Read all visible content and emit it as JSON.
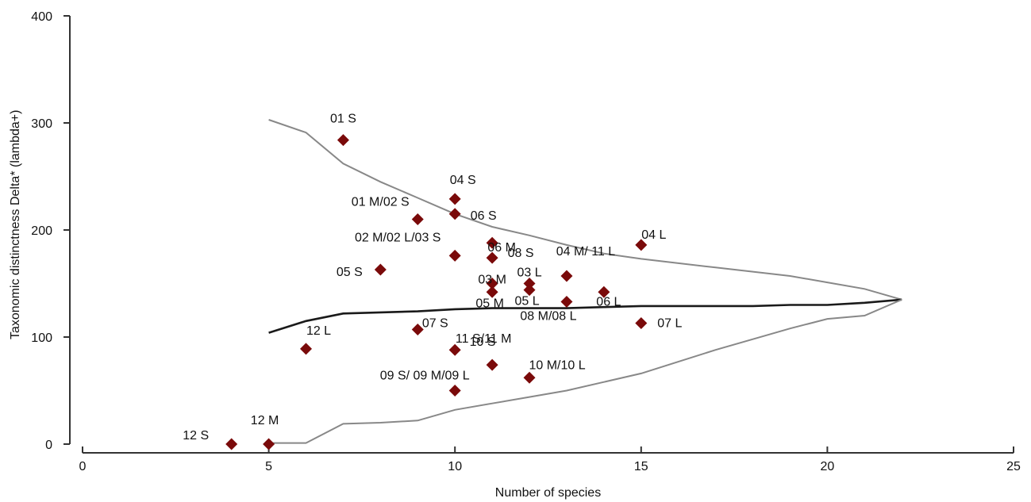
{
  "chart_data": {
    "type": "scatter",
    "title": "",
    "xlabel": "Number of species",
    "ylabel": "Taxonomic distinctness Delta* (lambda+)",
    "xlim": [
      0,
      25
    ],
    "ylim": [
      0,
      400
    ],
    "xticks": [
      0,
      5,
      10,
      15,
      20,
      25
    ],
    "yticks": [
      0,
      100,
      200,
      300,
      400
    ],
    "grid": false,
    "legend": "none",
    "colors": {
      "point": "#7a0a0a",
      "funnel": "#888888",
      "mean": "#1a1a1a",
      "axis": "#333333"
    },
    "points": [
      {
        "label": "01 S",
        "x": 7,
        "y": 284
      },
      {
        "label": "04 S",
        "x": 10,
        "y": 229
      },
      {
        "label": "01 M/02 S",
        "x": 9,
        "y": 210
      },
      {
        "label": "06 S",
        "x": 10,
        "y": 215
      },
      {
        "label": "06 M",
        "x": 11,
        "y": 188
      },
      {
        "label": "04 L",
        "x": 15,
        "y": 186
      },
      {
        "label": "02 M/02 L/03 S",
        "x": 10,
        "y": 176
      },
      {
        "label": "08 S",
        "x": 11,
        "y": 174
      },
      {
        "label": "05 S",
        "x": 8,
        "y": 163
      },
      {
        "label": "04 M/ 11 L",
        "x": 13,
        "y": 157
      },
      {
        "label": "03 L",
        "x": 12,
        "y": 150
      },
      {
        "label": "03 M",
        "x": 11,
        "y": 150
      },
      {
        "label": "06 L",
        "x": 14,
        "y": 142
      },
      {
        "label": "05 M",
        "x": 11,
        "y": 142
      },
      {
        "label": "05 L",
        "x": 12,
        "y": 144
      },
      {
        "label": "08 M/08 L",
        "x": 13,
        "y": 133
      },
      {
        "label": "07 L",
        "x": 15,
        "y": 113
      },
      {
        "label": "07 S",
        "x": 9,
        "y": 107
      },
      {
        "label": "12 L",
        "x": 6,
        "y": 89
      },
      {
        "label": "11 S/11 M",
        "x": 10,
        "y": 88
      },
      {
        "label": "10 S",
        "x": 11,
        "y": 74
      },
      {
        "label": "10 M/10 L",
        "x": 12,
        "y": 62
      },
      {
        "label": "09 S/ 09 M/09 L",
        "x": 10,
        "y": 50
      },
      {
        "label": "12 M",
        "x": 5,
        "y": 0
      },
      {
        "label": "12 S",
        "x": 4,
        "y": 0
      }
    ],
    "series": [
      {
        "kind": "upper-limit",
        "x": [
          5,
          6,
          7,
          8,
          9,
          10,
          11,
          12,
          13,
          14,
          15,
          16,
          17,
          18,
          19,
          20,
          21,
          22
        ],
        "y": [
          303,
          291,
          262,
          245,
          230,
          215,
          203,
          195,
          186,
          178,
          173,
          169,
          165,
          161,
          157,
          151,
          145,
          135
        ]
      },
      {
        "kind": "mean",
        "x": [
          5,
          6,
          7,
          8,
          9,
          10,
          11,
          12,
          13,
          14,
          15,
          16,
          17,
          18,
          19,
          20,
          21,
          22
        ],
        "y": [
          104,
          115,
          122,
          123,
          124,
          126,
          127,
          127,
          127,
          128,
          129,
          129,
          129,
          129,
          130,
          130,
          132,
          135
        ]
      },
      {
        "kind": "lower-limit",
        "x": [
          5,
          6,
          7,
          8,
          9,
          10,
          11,
          12,
          13,
          14,
          15,
          16,
          17,
          18,
          19,
          20,
          21,
          22
        ],
        "y": [
          1,
          1,
          19,
          20,
          22,
          32,
          38,
          44,
          50,
          58,
          66,
          77,
          88,
          98,
          108,
          117,
          120,
          135
        ]
      }
    ]
  }
}
